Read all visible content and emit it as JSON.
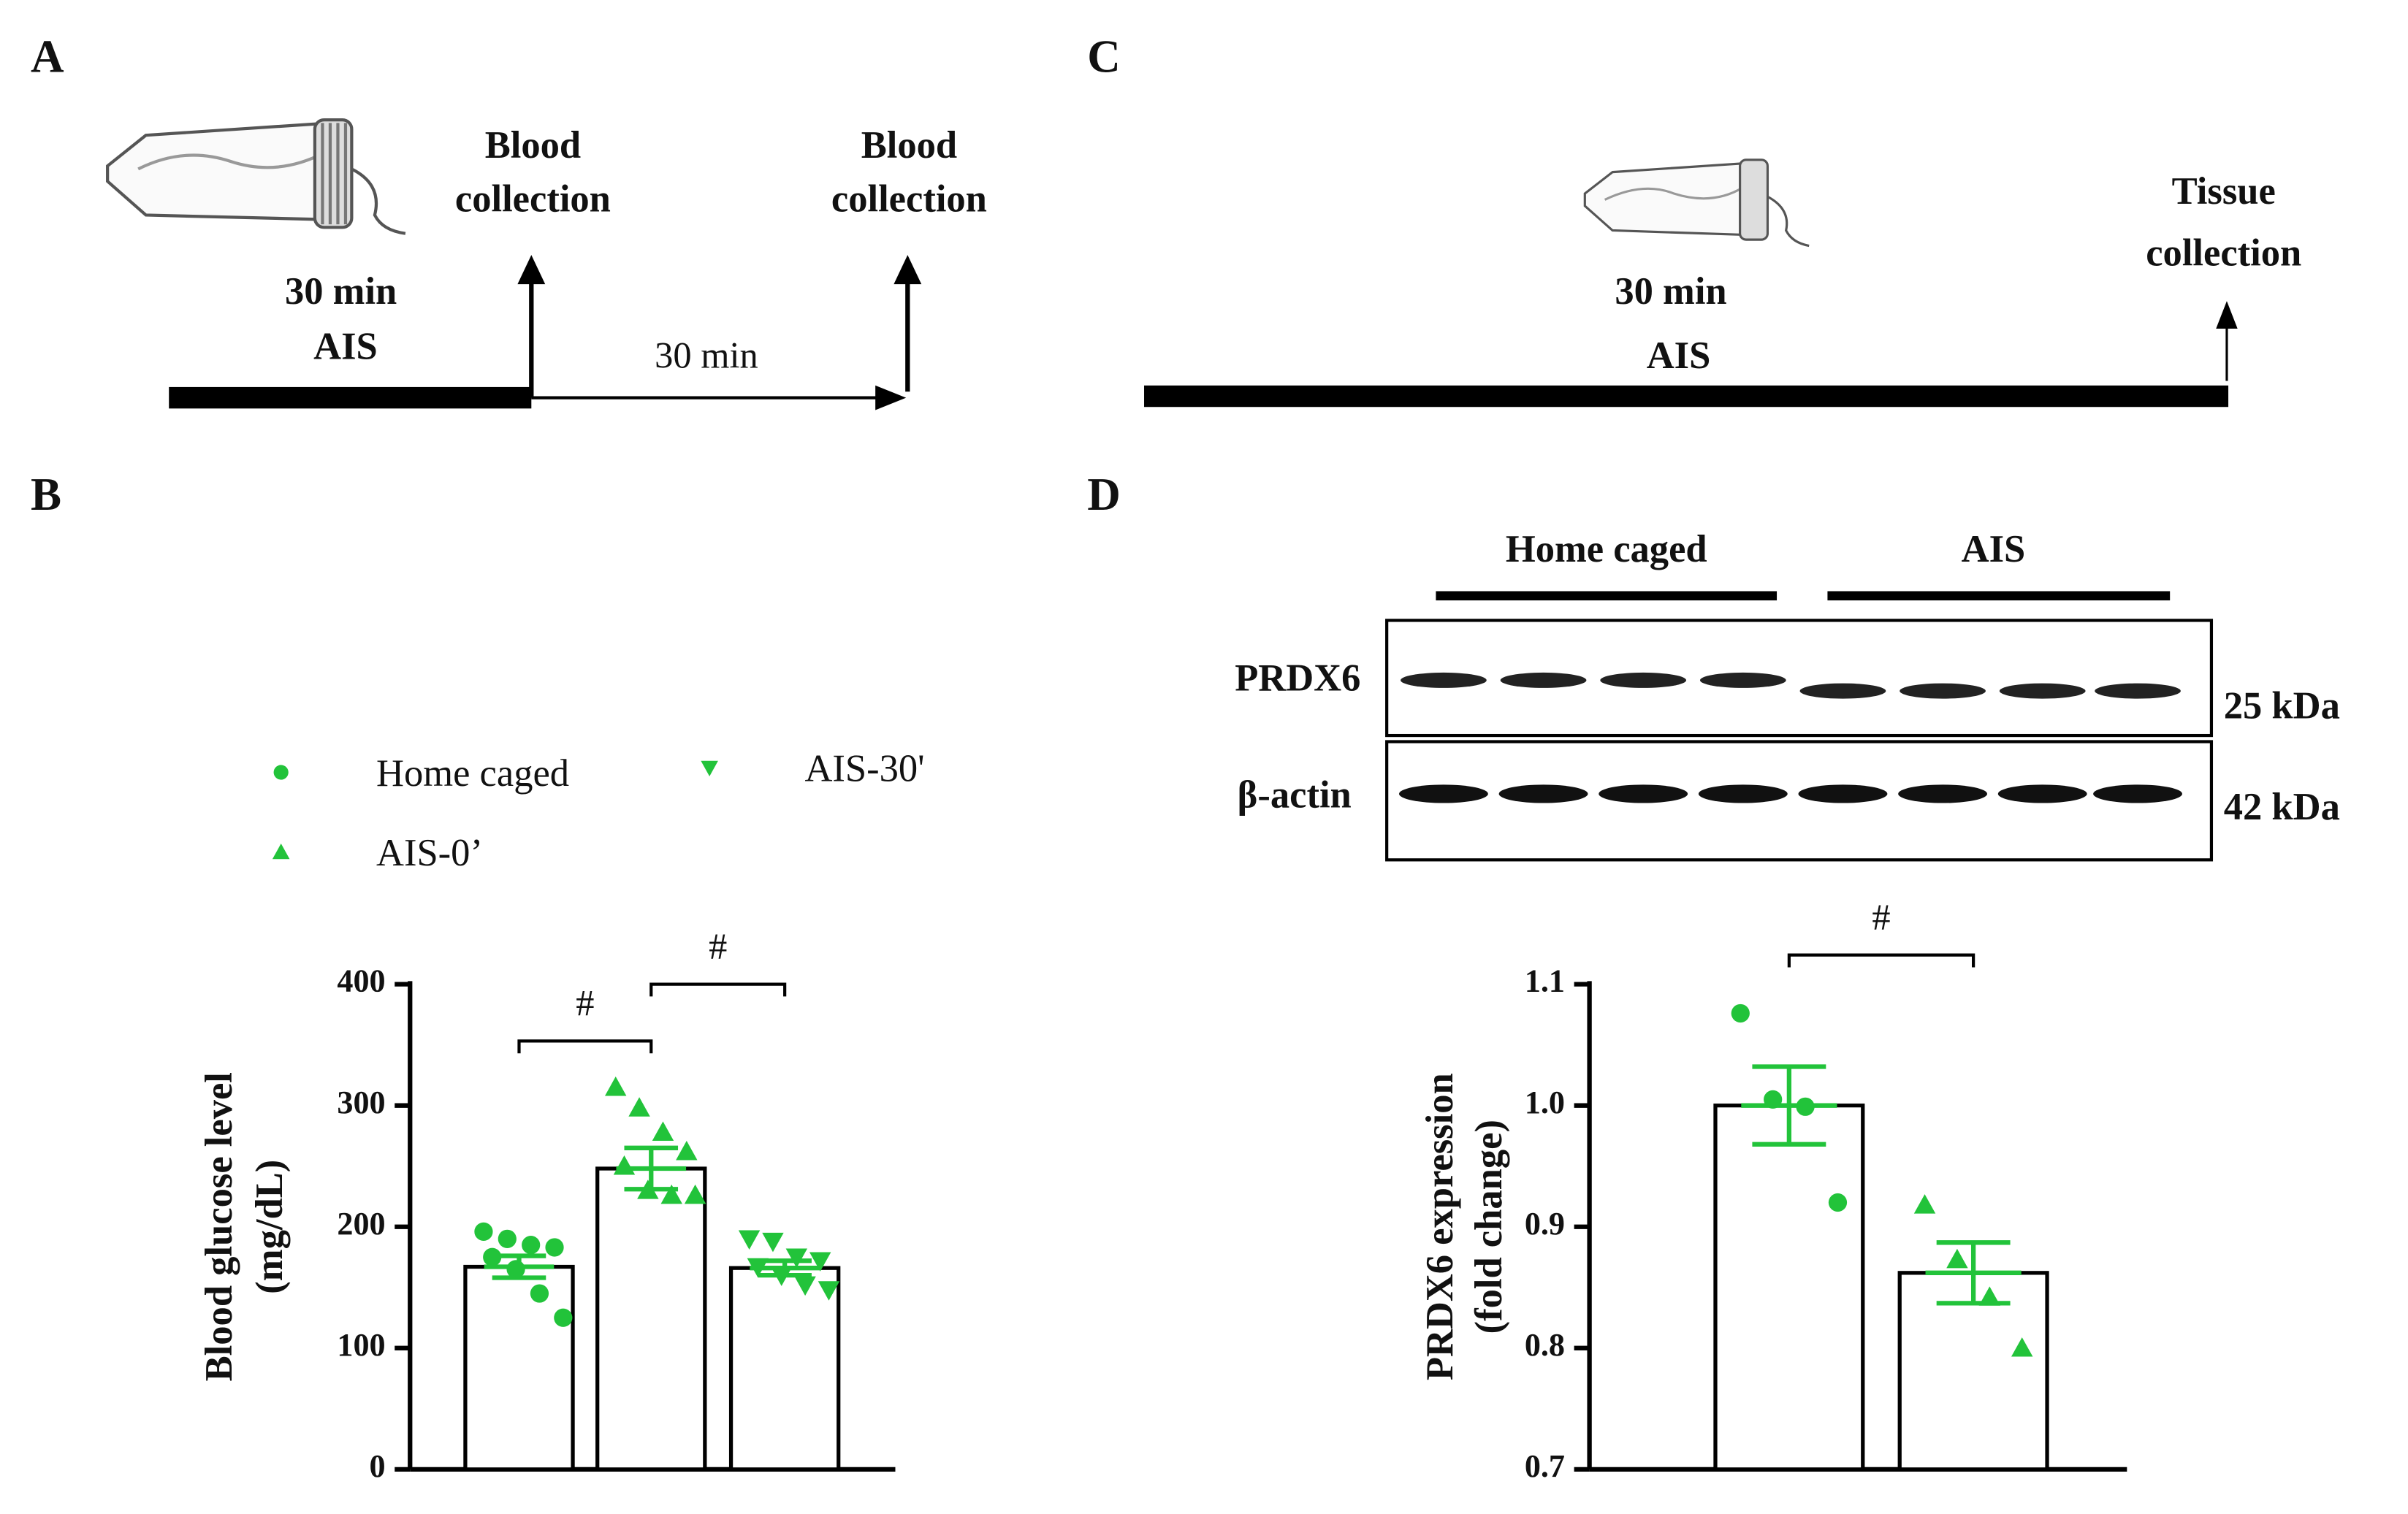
{
  "figure": {
    "A": {
      "label": "A",
      "collection_1": [
        "Blood",
        "collection"
      ],
      "collection_2": [
        "Blood",
        "collection"
      ],
      "stress": [
        "30 min",
        "AIS"
      ],
      "interval": "30 min"
    },
    "B": {
      "label": "B"
    },
    "C": {
      "label": "C",
      "stress": [
        "30 min",
        "AIS"
      ],
      "collection": [
        "Tissue",
        "collection"
      ]
    },
    "D": {
      "label": "D",
      "groups": [
        "Home caged",
        "AIS"
      ],
      "rows": [
        {
          "protein": "PRDX6",
          "size": "25 kDa"
        },
        {
          "protein": "β-actin",
          "size": "42 kDa"
        }
      ]
    }
  },
  "chart_data": [
    {
      "type": "bar",
      "ylabel": [
        "Blood glucose level",
        "(mg/dL)"
      ],
      "ylim": [
        0,
        400
      ],
      "yticks": [
        0,
        100,
        200,
        300,
        400
      ],
      "color": "#22c33a",
      "series": [
        {
          "name": "Home caged",
          "marker": "circle",
          "value": 167,
          "error": 9,
          "points": [
            196,
            190,
            185,
            183,
            175,
            165,
            145,
            125
          ]
        },
        {
          "name": "AIS-0’",
          "marker": "triangle",
          "value": 248,
          "error": 17,
          "points": [
            315,
            298,
            278,
            262,
            250,
            230,
            226,
            226
          ]
        },
        {
          "name": "AIS-30'",
          "marker": "triangle-down",
          "value": 166,
          "error": 6,
          "points": [
            190,
            188,
            175,
            172,
            167,
            160,
            152,
            148
          ]
        }
      ],
      "annotations": [
        {
          "text": "#",
          "from": 0,
          "to": 1
        },
        {
          "text": "#",
          "from": 1,
          "to": 2
        }
      ]
    },
    {
      "type": "bar",
      "ylabel": [
        "PRDX6 expression",
        "(fold change)"
      ],
      "ylim": [
        0.7,
        1.1
      ],
      "yticks": [
        0.7,
        0.8,
        0.9,
        {
          "value": 1,
          "label": "1.0"
        },
        1.1
      ],
      "color": "#22c33a",
      "series": [
        {
          "marker": "circle",
          "value": 1.0,
          "error": 0.032,
          "points": [
            1.076,
            1.005,
            0.999,
            0.92
          ]
        },
        {
          "marker": "triangle",
          "value": 0.862,
          "error": 0.025,
          "points": [
            0.918,
            0.873,
            0.842,
            0.8
          ]
        }
      ],
      "annotations": [
        {
          "text": "#",
          "from": 0,
          "to": 1
        }
      ]
    }
  ]
}
